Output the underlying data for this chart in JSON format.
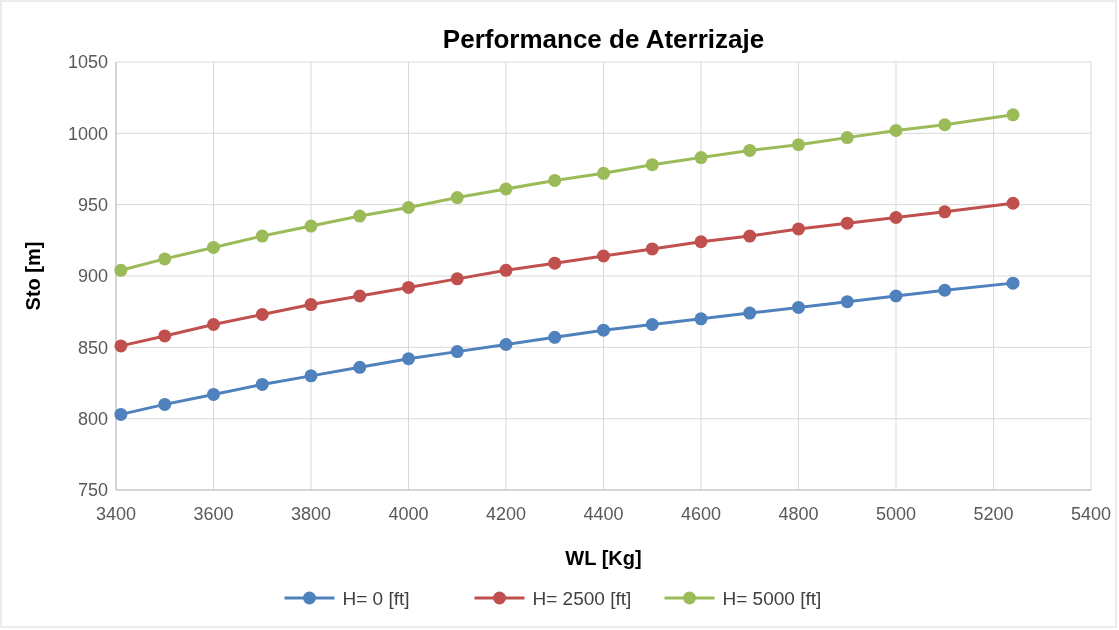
{
  "chart_data": {
    "type": "line",
    "title": "Performance de Aterrizaje",
    "xlabel": "WL [Kg]",
    "ylabel": "Sto [m]",
    "x": [
      3410,
      3500,
      3600,
      3700,
      3800,
      3900,
      4000,
      4100,
      4200,
      4300,
      4400,
      4500,
      4600,
      4700,
      4800,
      4900,
      5000,
      5100,
      5240
    ],
    "series": [
      {
        "name": "H= 0 [ft]",
        "color": "#4f81bd",
        "values": [
          803,
          810,
          817,
          824,
          830,
          836,
          842,
          847,
          852,
          857,
          862,
          866,
          870,
          874,
          878,
          882,
          886,
          890,
          895
        ]
      },
      {
        "name": "H= 2500 [ft]",
        "color": "#c0504d",
        "values": [
          851,
          858,
          866,
          873,
          880,
          886,
          892,
          898,
          904,
          909,
          914,
          919,
          924,
          928,
          933,
          937,
          941,
          945,
          951
        ]
      },
      {
        "name": "H= 5000 [ft]",
        "color": "#9bbb59",
        "values": [
          904,
          912,
          920,
          928,
          935,
          942,
          948,
          955,
          961,
          967,
          972,
          978,
          983,
          988,
          992,
          997,
          1002,
          1006,
          1013
        ]
      }
    ],
    "xlim": [
      3400,
      5400
    ],
    "xticks": [
      3400,
      3600,
      3800,
      4000,
      4200,
      4400,
      4600,
      4800,
      5000,
      5200,
      5400
    ],
    "ylim": [
      750,
      1050
    ],
    "yticks": [
      750,
      800,
      850,
      900,
      950,
      1000,
      1050
    ],
    "grid": true,
    "legend": "bottom",
    "marker": "circle",
    "line_style": "solid"
  }
}
